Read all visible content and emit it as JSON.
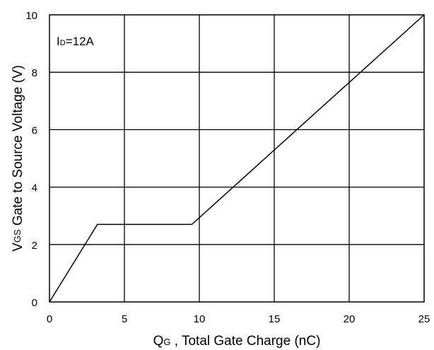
{
  "chart_data": {
    "type": "line",
    "annotation": {
      "text": "I",
      "sub": "D",
      "rest": "=12A"
    },
    "xlabel": {
      "main": "Q",
      "sub": "G",
      "rest": " , Total Gate Charge (nC)"
    },
    "ylabel": {
      "main": "V",
      "sub": "GS",
      "rest": " Gate to Source Voltage (V)"
    },
    "xlim": [
      0,
      25
    ],
    "ylim": [
      0,
      10
    ],
    "xticks": [
      "0",
      "5",
      "10",
      "15",
      "20",
      "25"
    ],
    "yticks": [
      "0",
      "2",
      "4",
      "6",
      "8",
      "10"
    ],
    "grid": true,
    "series": [
      {
        "x": [
          0,
          3.2,
          9.5,
          25
        ],
        "y": [
          0,
          2.7,
          2.7,
          10
        ]
      }
    ]
  }
}
